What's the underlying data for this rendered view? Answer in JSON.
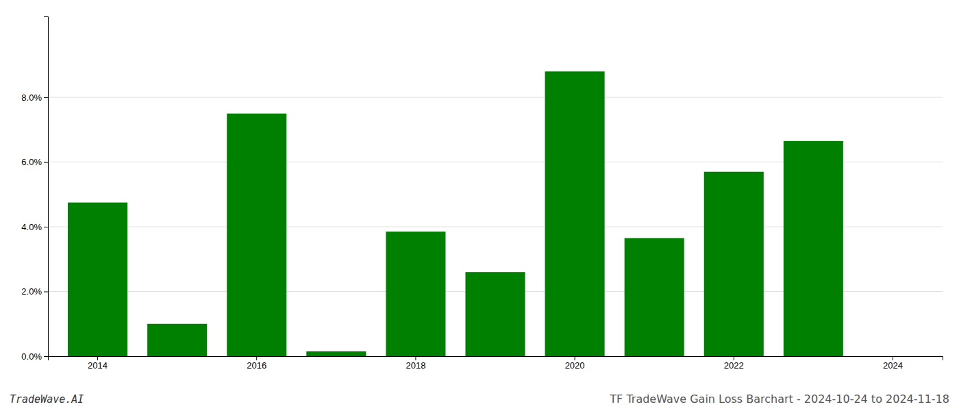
{
  "chart_data": {
    "type": "bar",
    "title": "TF TradeWave Gain Loss Barchart - 2024-10-24 to 2024-11-18",
    "annotations": [
      "TradeWave.AI"
    ],
    "categories": [
      "2014",
      null,
      "2016",
      null,
      "2018",
      null,
      "2020",
      null,
      "2022",
      null,
      "2024"
    ],
    "values": [
      0.0475,
      0.01,
      0.075,
      0.0015,
      0.0385,
      0.026,
      0.088,
      0.0365,
      0.057,
      0.0665,
      0.0
    ],
    "color": "#008000",
    "ylim": [
      0,
      0.105
    ],
    "yticks": [
      {
        "value": 0.0,
        "label": "0.0%"
      },
      {
        "value": 0.02,
        "label": "2.0%"
      },
      {
        "value": 0.04,
        "label": "4.0%"
      },
      {
        "value": 0.06,
        "label": "6.0%"
      },
      {
        "value": 0.08,
        "label": "8.0%"
      }
    ],
    "grid": true
  }
}
